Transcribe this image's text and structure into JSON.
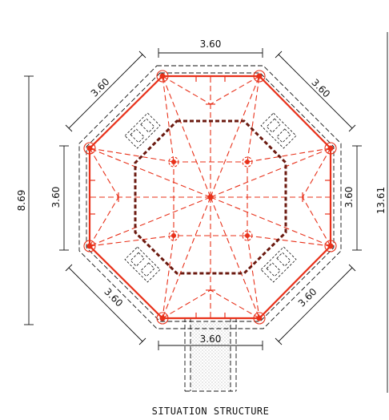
{
  "plan": {
    "caption": "SITUATION STRUCTURE",
    "dimensions": {
      "top": "3.60",
      "upper_left": "3.60",
      "upper_right": "3.60",
      "left": "3.60",
      "right": "3.60",
      "lower_left": "3.60",
      "lower_right": "3.60",
      "bottom": "3.60",
      "overall_height": "8.69",
      "overall_right": "13.61"
    }
  },
  "colors": {
    "structure": "#e8311a",
    "inner_wall": "#6b1a10",
    "dimension_lines": "#111111"
  }
}
